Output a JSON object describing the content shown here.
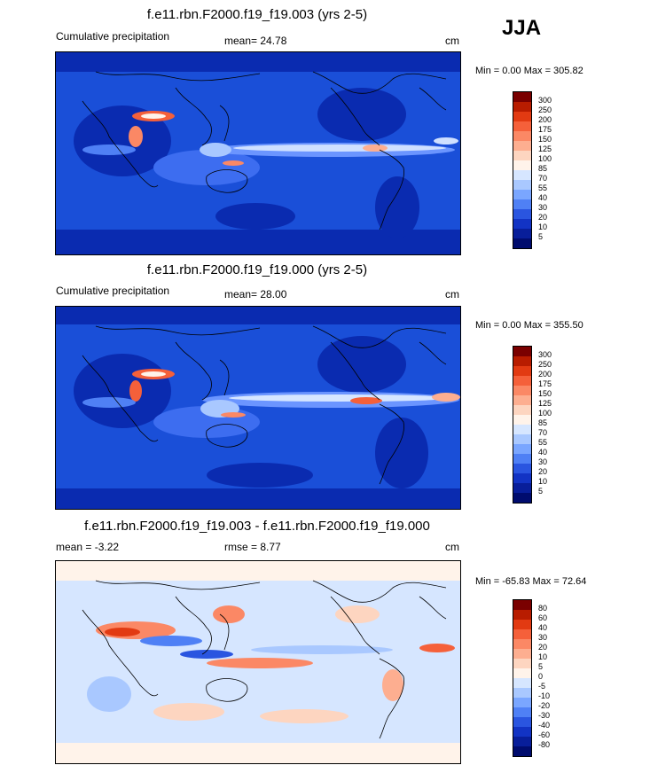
{
  "season": "JJA",
  "panels": [
    {
      "title": "f.e11.rbn.F2000.f19_f19.003 (yrs 2-5)",
      "left_label": "Cumulative precipitation",
      "mean_label": "mean=  24.78",
      "unit": "cm",
      "minmax": "Min =   0.00 Max = 305.82",
      "palette": "precip"
    },
    {
      "title": "f.e11.rbn.F2000.f19_f19.000 (yrs 2-5)",
      "left_label": "Cumulative precipitation",
      "mean_label": "mean=  28.00",
      "unit": "cm",
      "minmax": "Min =   0.00 Max = 355.50",
      "palette": "precip"
    },
    {
      "title": "f.e11.rbn.F2000.f19_f19.003 - f.e11.rbn.F2000.f19_f19.000",
      "left_label": "mean =  -3.22",
      "mean_label": "rmse =   8.77",
      "unit": "cm",
      "minmax": "Min = -65.83 Max =  72.64",
      "palette": "diff"
    }
  ],
  "colorbars": {
    "precip": {
      "labels": [
        "300",
        "250",
        "200",
        "175",
        "150",
        "125",
        "100",
        "85",
        "70",
        "55",
        "40",
        "30",
        "20",
        "10",
        "5"
      ],
      "colors": [
        "#7a0000",
        "#b81c00",
        "#e23a12",
        "#f5603a",
        "#fb8865",
        "#fdae90",
        "#fdd5c0",
        "#fff3ea",
        "#d6e6ff",
        "#a9c8ff",
        "#7aa6ff",
        "#4f80f5",
        "#2a55e0",
        "#1233c4",
        "#081e9a",
        "#000c6e"
      ]
    },
    "diff": {
      "labels": [
        "80",
        "60",
        "40",
        "30",
        "20",
        "10",
        "5",
        "0",
        "-5",
        "-10",
        "-20",
        "-30",
        "-40",
        "-60",
        "-80"
      ],
      "colors": [
        "#7a0000",
        "#b81c00",
        "#e23a12",
        "#f5603a",
        "#fb8865",
        "#fdae90",
        "#fdd5c0",
        "#fff3ea",
        "#d6e6ff",
        "#a9c8ff",
        "#7aa6ff",
        "#4f80f5",
        "#2a55e0",
        "#1233c4",
        "#081e9a",
        "#000c6e"
      ]
    }
  }
}
